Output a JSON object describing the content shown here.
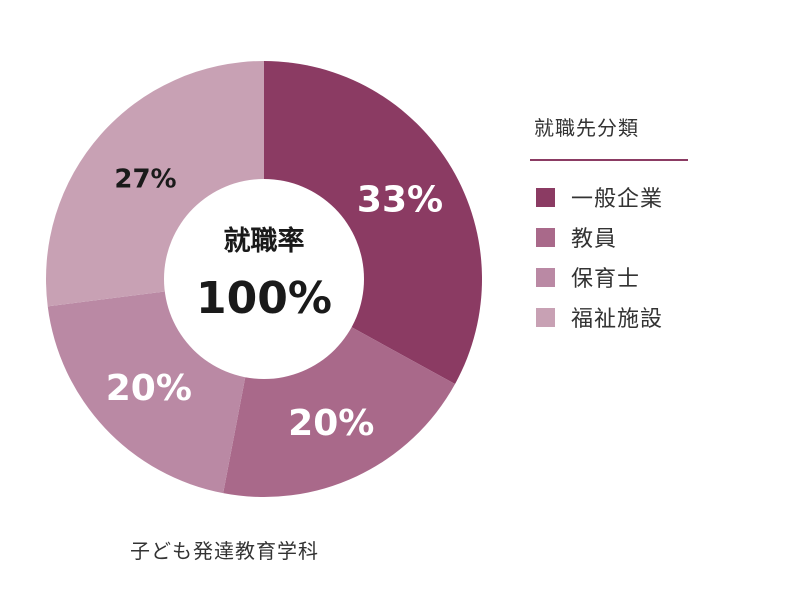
{
  "chart_data": {
    "type": "pie",
    "donut": true,
    "categories": [
      "一般企業",
      "教員",
      "保育士",
      "福祉施設"
    ],
    "values": [
      33,
      20,
      20,
      27
    ],
    "value_labels": [
      "33%",
      "20%",
      "20%",
      "27%"
    ],
    "colors": [
      "#8b3b63",
      "#a9698a",
      "#ba89a4",
      "#c8a1b4"
    ],
    "label_colors": [
      "#ffffff",
      "#ffffff",
      "#ffffff",
      "#1a1a1a"
    ],
    "legend_title": "就職先分類",
    "legend_position": "right",
    "center_label": "就職率",
    "center_value": "100%",
    "caption": "子ども発達教育学科"
  }
}
